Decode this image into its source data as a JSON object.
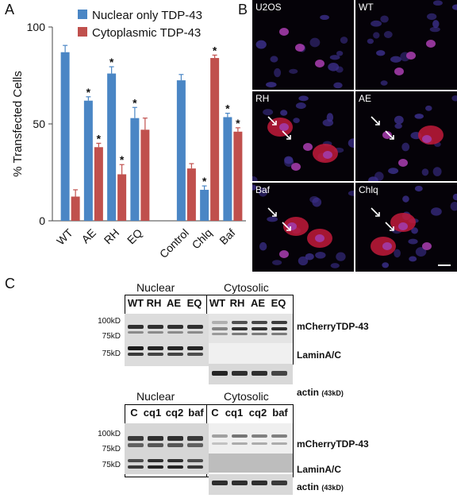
{
  "panels": {
    "a": "A",
    "b": "B",
    "c": "C"
  },
  "chart_data": {
    "type": "bar",
    "ylabel": "% Transfected Cells",
    "ylim": [
      0,
      100
    ],
    "yticks": [
      0,
      50,
      100
    ],
    "categories": [
      "WT",
      "AE",
      "RH",
      "EQ",
      "Control",
      "Chlq",
      "Baf"
    ],
    "gap_after_index": 3,
    "series": [
      {
        "name": "Nuclear only TDP-43",
        "color": "#4a86c5",
        "values": [
          87,
          62,
          76,
          53,
          72.5,
          16,
          53.5
        ],
        "errors": [
          3.5,
          2,
          3.5,
          5.5,
          3,
          2,
          2
        ],
        "significant": [
          false,
          true,
          true,
          true,
          false,
          true,
          true
        ]
      },
      {
        "name": "Cytoplasmic TDP-43",
        "color": "#c0504d",
        "values": [
          12.5,
          38,
          24,
          47,
          27,
          84,
          46
        ],
        "errors": [
          3.5,
          2,
          5,
          6,
          2.5,
          1.5,
          2
        ],
        "significant": [
          false,
          true,
          true,
          false,
          false,
          true,
          true
        ]
      }
    ],
    "legend_position": "top-left",
    "marker": "*"
  },
  "micrographs": [
    {
      "label": "U2OS"
    },
    {
      "label": "WT"
    },
    {
      "label": "RH"
    },
    {
      "label": "AE"
    },
    {
      "label": "Baf"
    },
    {
      "label": "Chlq"
    }
  ],
  "blots": [
    {
      "nuclear_header": "Nuclear",
      "cytosolic_header": "Cytosolic",
      "nuclear_lanes": [
        "WT",
        "RH",
        "AE",
        "EQ"
      ],
      "cytosolic_lanes": [
        "WT",
        "RH",
        "AE",
        "EQ"
      ],
      "markers": {
        "m1": "100kD",
        "m2": "75kD",
        "m3": "75kD"
      },
      "proteins": {
        "p1": "mCherryTDP-43",
        "p2": "LaminA/C",
        "p3": "actin",
        "p3_sub": "(43kD)"
      }
    },
    {
      "nuclear_header": "Nuclear",
      "cytosolic_header": "Cytosolic",
      "nuclear_lanes": [
        "C",
        "cq1",
        "cq2",
        "baf"
      ],
      "cytosolic_lanes": [
        "C",
        "cq1",
        "cq2",
        "baf"
      ],
      "markers": {
        "m1": "100kD",
        "m2": "75kD",
        "m3": "75kD"
      },
      "proteins": {
        "p1": "mCherryTDP-43",
        "p2": "LaminA/C",
        "p3": "actin",
        "p3_sub": "(43kD)"
      }
    }
  ]
}
